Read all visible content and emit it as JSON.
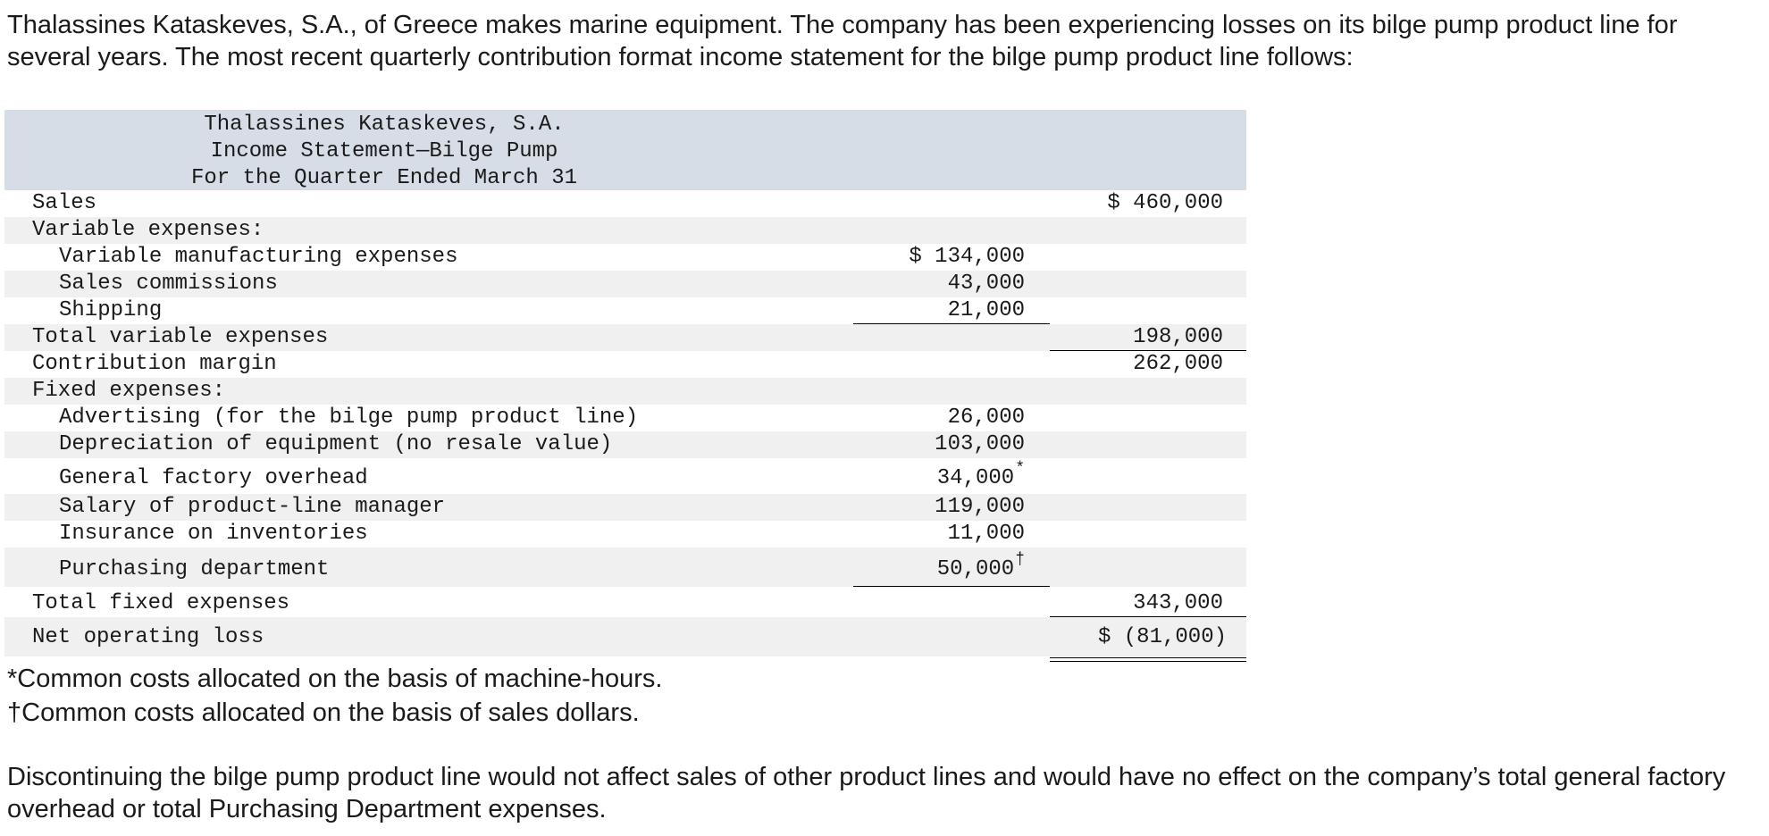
{
  "intro": "Thalassines Kataskeves, S.A., of Greece makes marine equipment. The company has been experiencing losses on its bilge pump product line for several years. The most recent quarterly contribution format income statement for the bilge pump product line follows:",
  "statement": {
    "company": "Thalassines Kataskeves, S.A.",
    "title": "Income Statement—Bilge Pump",
    "period": "For the Quarter Ended March 31",
    "rows": {
      "sales": {
        "label": "Sales",
        "total": "$ 460,000"
      },
      "var_heading": {
        "label": "Variable expenses:"
      },
      "var_mfg": {
        "label": "Variable manufacturing expenses",
        "amount": "$ 134,000"
      },
      "sales_comm": {
        "label": "Sales commissions",
        "amount": "43,000"
      },
      "shipping": {
        "label": "Shipping",
        "amount": "21,000"
      },
      "total_var": {
        "label": "Total variable expenses",
        "total": "198,000"
      },
      "contrib": {
        "label": "Contribution margin",
        "total": "262,000"
      },
      "fixed_heading": {
        "label": "Fixed expenses:"
      },
      "advertising": {
        "label": "Advertising (for the bilge pump product line)",
        "amount": "26,000"
      },
      "depreciation": {
        "label": "Depreciation of equipment (no resale value)",
        "amount": "103,000"
      },
      "gfo": {
        "label": "General factory overhead",
        "amount": "34,000",
        "mark": "*"
      },
      "salary": {
        "label": "Salary of product-line manager",
        "amount": "119,000"
      },
      "insurance": {
        "label": "Insurance on inventories",
        "amount": "11,000"
      },
      "purchasing": {
        "label": "Purchasing department",
        "amount": "50,000",
        "mark": "†"
      },
      "total_fixed": {
        "label": "Total fixed expenses",
        "total": "343,000"
      },
      "net_loss": {
        "label": "Net operating loss",
        "total": "$ (81,000)"
      }
    }
  },
  "footnotes": {
    "machine_hours": "*Common costs allocated on the basis of machine-hours.",
    "sales_dollars": "†Common costs allocated on the basis of sales dollars."
  },
  "closing": "Discontinuing the bilge pump product line would not affect sales of other product lines and would have no effect on the company’s total general factory overhead or total Purchasing Department expenses."
}
